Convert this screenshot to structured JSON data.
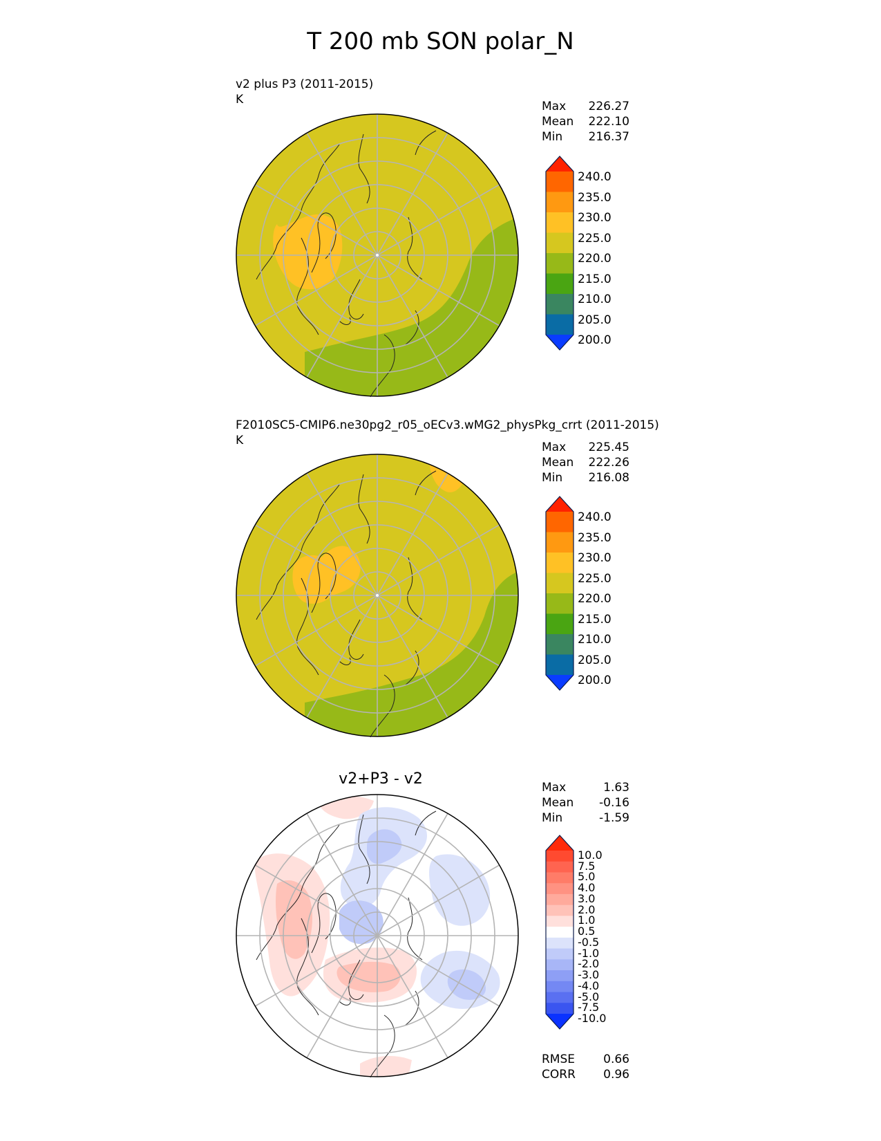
{
  "main_title": "T 200 mb SON polar_N",
  "chart_data": [
    {
      "type": "polar_contour_map",
      "title_line1": "v2 plus P3 (2011-2015)",
      "units": "K",
      "stats": [
        {
          "label": "Max",
          "value": "226.27"
        },
        {
          "label": "Mean",
          "value": "222.10"
        },
        {
          "label": "Min",
          "value": "216.37"
        }
      ],
      "colorbar": {
        "levels": [
          "240.0",
          "235.0",
          "230.0",
          "225.0",
          "220.0",
          "215.0",
          "210.0",
          "205.0",
          "200.0"
        ],
        "colors": [
          "#ff2200",
          "#ff6600",
          "#ff9911",
          "#ffc125",
          "#d6c71f",
          "#97b918",
          "#4aa512",
          "#3a8660",
          "#0a6ca5",
          "#0a3cff"
        ]
      },
      "regions": [
        {
          "label": "~220-225 (background)",
          "color": "#d6c71f"
        },
        {
          "label": "215-220",
          "color": "#97b918"
        },
        {
          "label": "225-230",
          "color": "#ffc125"
        }
      ]
    },
    {
      "type": "polar_contour_map",
      "title_line1": "F2010SC5-CMIP6.ne30pg2_r05_oECv3.wMG2_physPkg_crrt (2011-2015)",
      "units": "K",
      "stats": [
        {
          "label": "Max",
          "value": "225.45"
        },
        {
          "label": "Mean",
          "value": "222.26"
        },
        {
          "label": "Min",
          "value": "216.08"
        }
      ],
      "colorbar": {
        "levels": [
          "240.0",
          "235.0",
          "230.0",
          "225.0",
          "220.0",
          "215.0",
          "210.0",
          "205.0",
          "200.0"
        ],
        "colors": [
          "#ff2200",
          "#ff6600",
          "#ff9911",
          "#ffc125",
          "#d6c71f",
          "#97b918",
          "#4aa512",
          "#3a8660",
          "#0a6ca5",
          "#0a3cff"
        ]
      },
      "regions": [
        {
          "label": "~220-225 (background)",
          "color": "#d6c71f"
        },
        {
          "label": "215-220",
          "color": "#97b918"
        },
        {
          "label": "225-230",
          "color": "#ffc125"
        }
      ]
    },
    {
      "type": "polar_contour_map",
      "title_center": "v2+P3 - v2",
      "stats": [
        {
          "label": "Max",
          "value": "1.63"
        },
        {
          "label": "Mean",
          "value": "-0.16"
        },
        {
          "label": "Min",
          "value": "-1.59"
        }
      ],
      "colorbar": {
        "levels": [
          "10.0",
          "7.5",
          "5.0",
          "4.0",
          "3.0",
          "2.0",
          "1.0",
          "0.5",
          "-0.5",
          "-1.0",
          "-2.0",
          "-3.0",
          "-4.0",
          "-5.0",
          "-7.5",
          "-10.0"
        ],
        "colors": [
          "#ff2a0a",
          "#ff4a30",
          "#ff6450",
          "#ff7c68",
          "#ff9282",
          "#ffaa9c",
          "#ffc2b8",
          "#ffe0dc",
          "#ffffff",
          "#dce3fb",
          "#c0cbf9",
          "#a8b6f7",
          "#8e9ff5",
          "#7488f3",
          "#5a70f1",
          "#3a55f0",
          "#0a32ff"
        ]
      },
      "footer_stats": [
        {
          "label": "RMSE",
          "value": "0.66"
        },
        {
          "label": "CORR",
          "value": "0.96"
        }
      ]
    }
  ]
}
